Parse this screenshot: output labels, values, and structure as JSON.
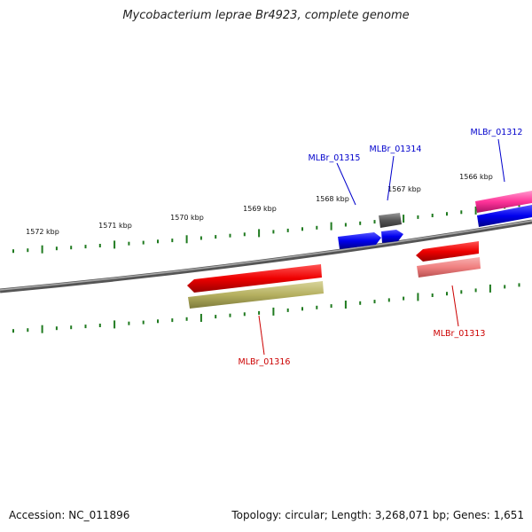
{
  "title": "Mycobacterium leprae Br4923, complete genome",
  "footer": {
    "accession": "Accession: NC_011896",
    "summary": "Topology: circular; Length: 3,268,071 bp; Genes: 1,651"
  },
  "ruler": {
    "labels": [
      "1572 kbp",
      "1571 kbp",
      "1570 kbp",
      "1569 kbp",
      "1568 kbp",
      "1567 kbp",
      "1566 kbp"
    ]
  },
  "genes": [
    {
      "id": "MLBr_01312",
      "label": "MLBr_01312",
      "label_color": "#0000cc",
      "colors": [
        "#ff3399",
        "#0000ee"
      ]
    },
    {
      "id": "MLBr_01313",
      "label": "MLBr_01313",
      "label_color": "#cc0000",
      "colors": [
        "#ee0000",
        "#f08080"
      ]
    },
    {
      "id": "MLBr_01314",
      "label": "MLBr_01314",
      "label_color": "#0000cc",
      "colors": [
        "#555555",
        "#0000ee"
      ]
    },
    {
      "id": "MLBr_01315",
      "label": "MLBr_01315",
      "label_color": "#0000cc",
      "colors": [
        "#0000ee"
      ]
    },
    {
      "id": "MLBr_01316",
      "label": "MLBr_01316",
      "label_color": "#cc0000",
      "colors": [
        "#ee0000",
        "#b5b060"
      ]
    }
  ]
}
